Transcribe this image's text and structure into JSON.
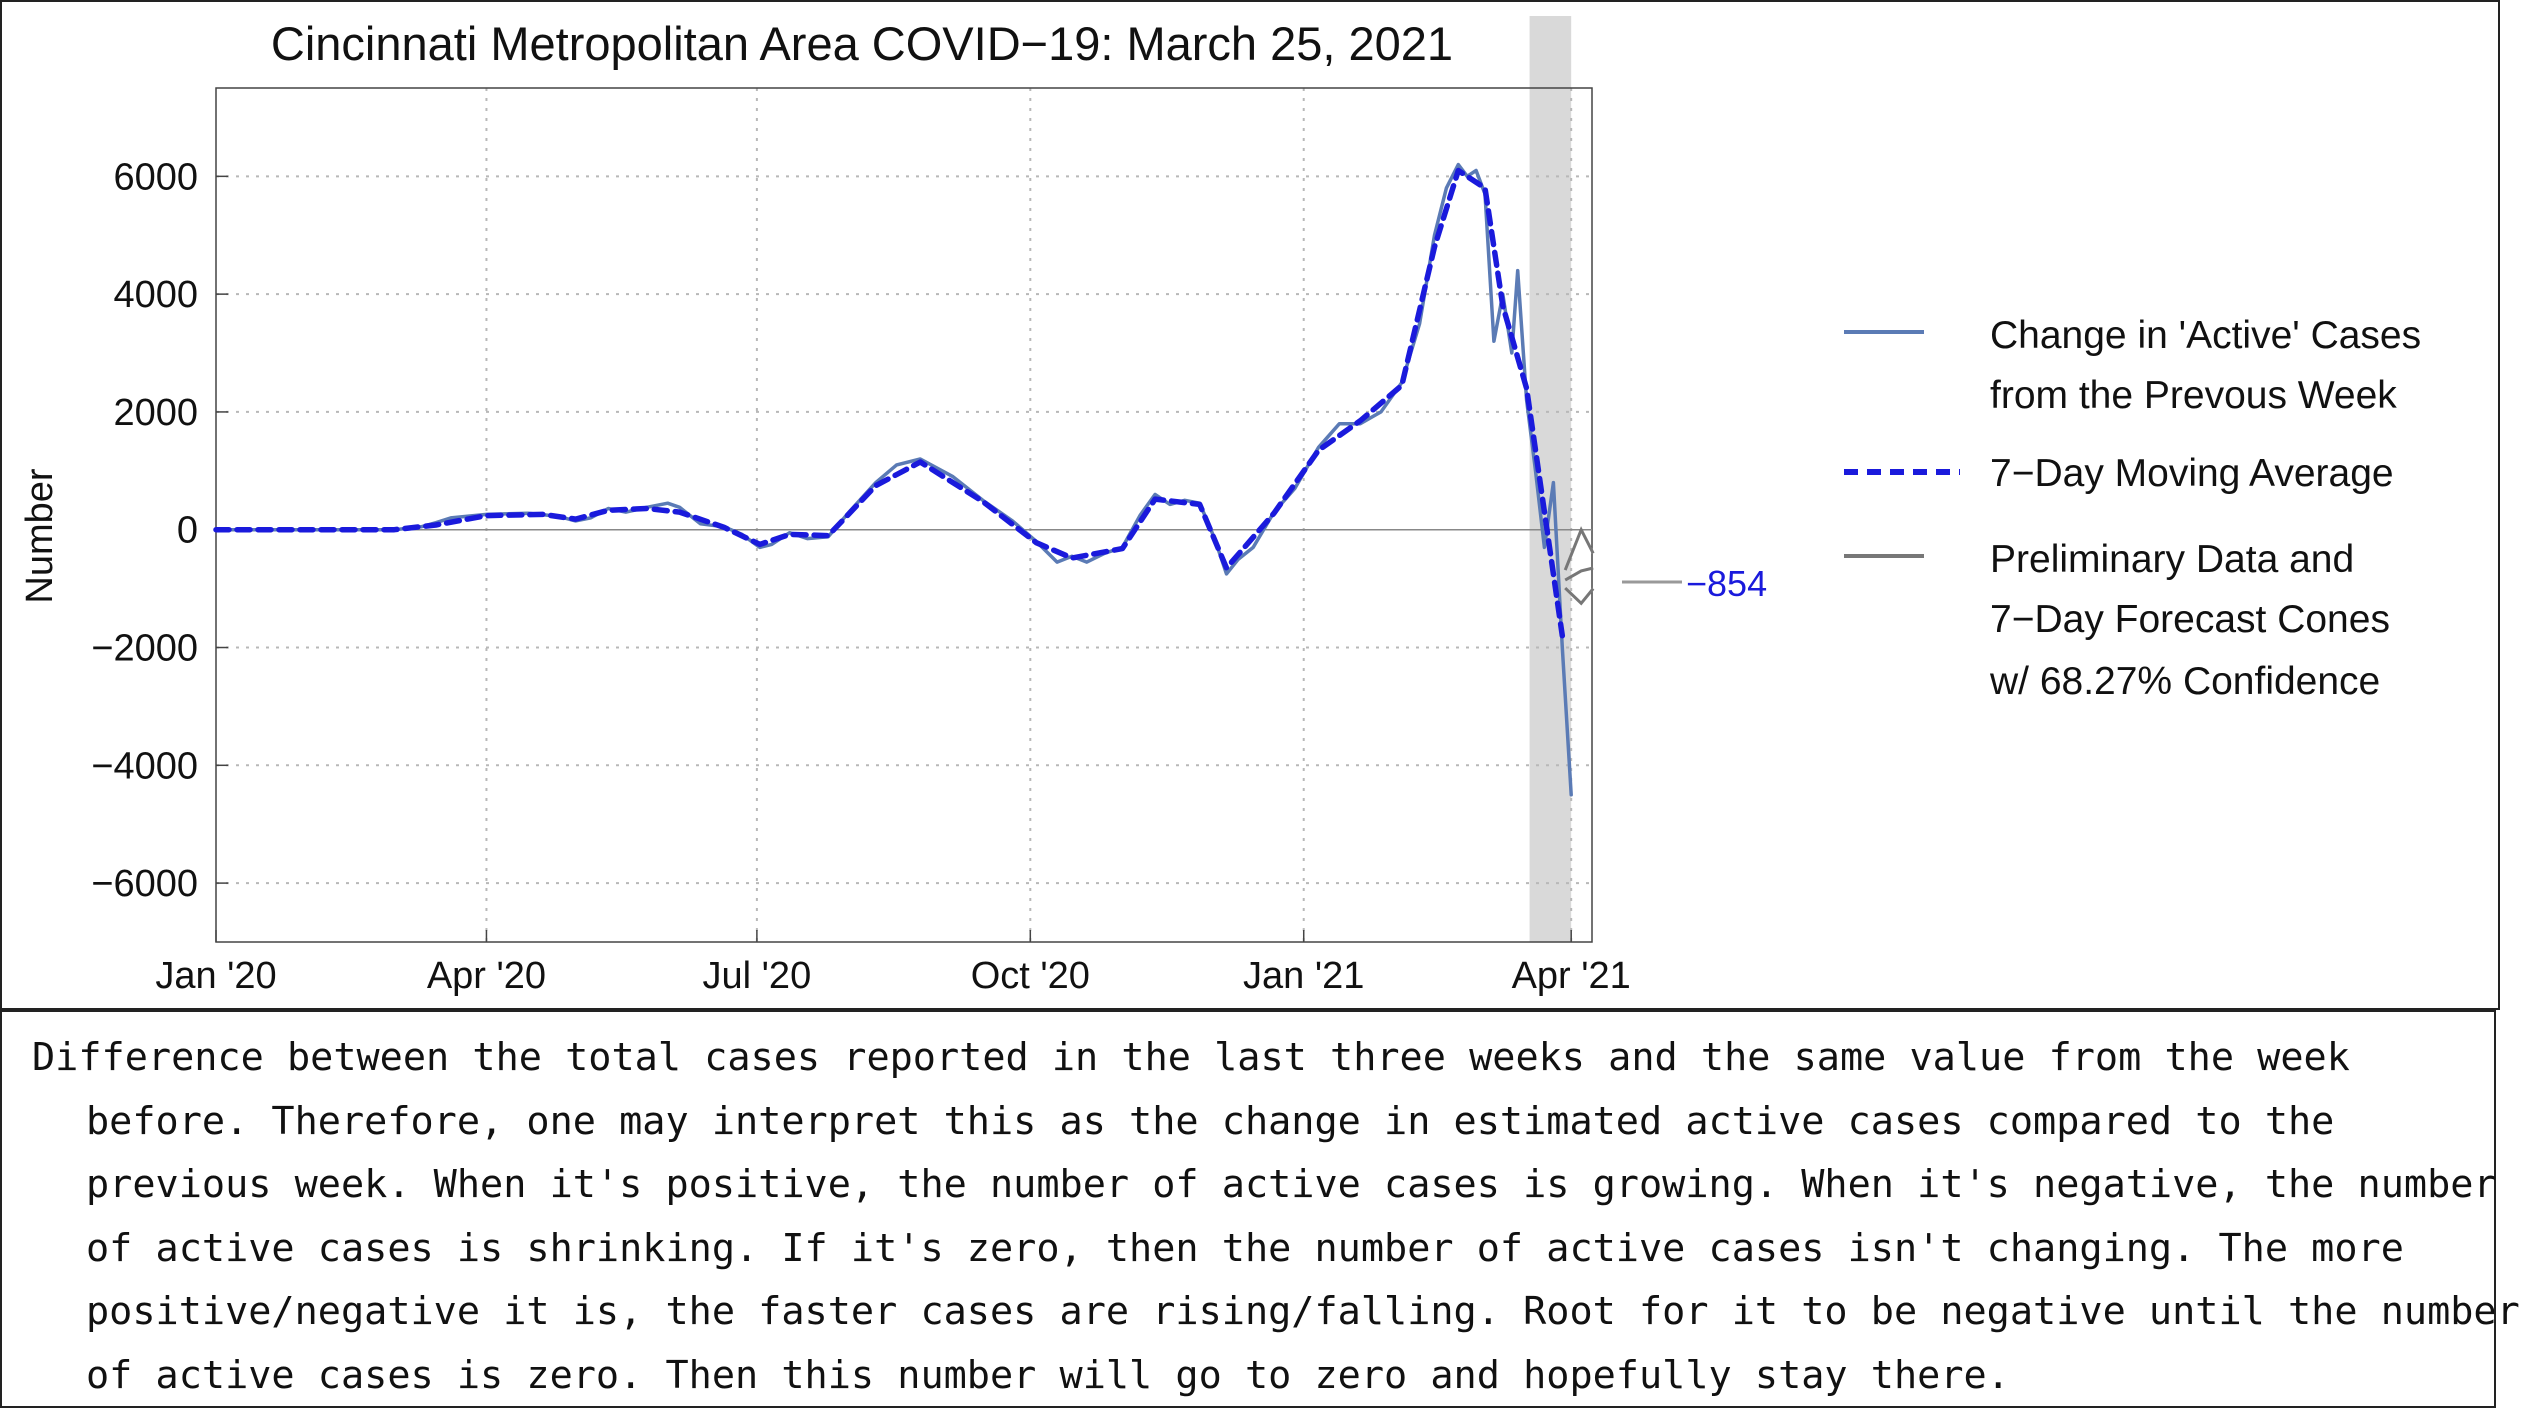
{
  "chart_data": {
    "type": "line",
    "title": "Cincinnati Metropolitan Area COVID−19: March 25, 2021",
    "xlabel": "",
    "ylabel": "Number",
    "x_range": [
      "2020-01-01",
      "2021-04-08"
    ],
    "ylim": [
      -7000,
      7500
    ],
    "x_ticks": [
      {
        "date": "2020-01-01",
        "label": "Jan '20"
      },
      {
        "date": "2020-04-01",
        "label": "Apr '20"
      },
      {
        "date": "2020-07-01",
        "label": "Jul '20"
      },
      {
        "date": "2020-10-01",
        "label": "Oct '20"
      },
      {
        "date": "2021-01-01",
        "label": "Jan '21"
      },
      {
        "date": "2021-04-01",
        "label": "Apr '21"
      }
    ],
    "y_ticks": [
      {
        "value": 6000,
        "label": "6000"
      },
      {
        "value": 4000,
        "label": "4000"
      },
      {
        "value": 2000,
        "label": "2000"
      },
      {
        "value": 0,
        "label": "0"
      },
      {
        "value": -2000,
        "label": "−2000"
      },
      {
        "value": -4000,
        "label": "−4000"
      },
      {
        "value": -6000,
        "label": "−6000"
      }
    ],
    "grid": true,
    "shaded_region": {
      "start": "2021-03-18",
      "end": "2021-04-01",
      "meaning": "preliminary data"
    },
    "series": [
      {
        "name": "Change in 'Active' Cases from the Prevous Week",
        "style": "solid",
        "color": "#5b7bb5",
        "points": [
          [
            "2020-01-01",
            0
          ],
          [
            "2020-02-01",
            0
          ],
          [
            "2020-03-01",
            0
          ],
          [
            "2020-03-10",
            50
          ],
          [
            "2020-03-15",
            120
          ],
          [
            "2020-03-20",
            200
          ],
          [
            "2020-04-01",
            260
          ],
          [
            "2020-04-15",
            280
          ],
          [
            "2020-04-25",
            230
          ],
          [
            "2020-05-01",
            150
          ],
          [
            "2020-05-06",
            200
          ],
          [
            "2020-05-12",
            360
          ],
          [
            "2020-05-18",
            300
          ],
          [
            "2020-05-25",
            380
          ],
          [
            "2020-06-01",
            450
          ],
          [
            "2020-06-05",
            380
          ],
          [
            "2020-06-12",
            100
          ],
          [
            "2020-06-20",
            50
          ],
          [
            "2020-06-26",
            -80
          ],
          [
            "2020-07-02",
            -300
          ],
          [
            "2020-07-06",
            -250
          ],
          [
            "2020-07-12",
            -50
          ],
          [
            "2020-07-18",
            -150
          ],
          [
            "2020-07-25",
            -120
          ],
          [
            "2020-08-01",
            300
          ],
          [
            "2020-08-10",
            800
          ],
          [
            "2020-08-17",
            1100
          ],
          [
            "2020-08-25",
            1200
          ],
          [
            "2020-09-05",
            900
          ],
          [
            "2020-09-15",
            500
          ],
          [
            "2020-09-25",
            150
          ],
          [
            "2020-10-03",
            -200
          ],
          [
            "2020-10-10",
            -550
          ],
          [
            "2020-10-15",
            -450
          ],
          [
            "2020-10-20",
            -550
          ],
          [
            "2020-10-26",
            -400
          ],
          [
            "2020-11-01",
            -300
          ],
          [
            "2020-11-07",
            250
          ],
          [
            "2020-11-12",
            600
          ],
          [
            "2020-11-17",
            430
          ],
          [
            "2020-11-22",
            500
          ],
          [
            "2020-11-27",
            450
          ],
          [
            "2020-12-02",
            -150
          ],
          [
            "2020-12-06",
            -750
          ],
          [
            "2020-12-10",
            -500
          ],
          [
            "2020-12-15",
            -300
          ],
          [
            "2020-12-22",
            300
          ],
          [
            "2020-12-29",
            700
          ],
          [
            "2021-01-06",
            1400
          ],
          [
            "2021-01-13",
            1800
          ],
          [
            "2021-01-20",
            1800
          ],
          [
            "2021-01-27",
            2000
          ],
          [
            "2021-02-03",
            2500
          ],
          [
            "2021-02-09",
            3500
          ],
          [
            "2021-02-14",
            5000
          ],
          [
            "2021-02-18",
            5800
          ],
          [
            "2021-02-22",
            6200
          ],
          [
            "2021-02-25",
            6000
          ],
          [
            "2021-02-28",
            6100
          ],
          [
            "2021-03-03",
            5700
          ],
          [
            "2021-03-06",
            3200
          ],
          [
            "2021-03-09",
            4000
          ],
          [
            "2021-03-12",
            3000
          ],
          [
            "2021-03-14",
            4400
          ],
          [
            "2021-03-17",
            2200
          ],
          [
            "2021-03-20",
            1000
          ],
          [
            "2021-03-23",
            -300
          ],
          [
            "2021-03-26",
            800
          ],
          [
            "2021-03-29",
            -2000
          ],
          [
            "2021-04-01",
            -4500
          ]
        ]
      },
      {
        "name": "7−Day Moving Average",
        "style": "dashed",
        "color": "#1a1adc",
        "points": [
          [
            "2020-01-01",
            0
          ],
          [
            "2020-03-01",
            0
          ],
          [
            "2020-03-15",
            80
          ],
          [
            "2020-04-01",
            240
          ],
          [
            "2020-04-20",
            260
          ],
          [
            "2020-05-01",
            180
          ],
          [
            "2020-05-12",
            330
          ],
          [
            "2020-05-25",
            360
          ],
          [
            "2020-06-05",
            300
          ],
          [
            "2020-06-20",
            40
          ],
          [
            "2020-07-02",
            -250
          ],
          [
            "2020-07-12",
            -80
          ],
          [
            "2020-07-25",
            -100
          ],
          [
            "2020-08-10",
            750
          ],
          [
            "2020-08-25",
            1150
          ],
          [
            "2020-09-15",
            480
          ],
          [
            "2020-10-03",
            -220
          ],
          [
            "2020-10-15",
            -480
          ],
          [
            "2020-11-01",
            -320
          ],
          [
            "2020-11-12",
            520
          ],
          [
            "2020-11-27",
            430
          ],
          [
            "2020-12-06",
            -650
          ],
          [
            "2020-12-22",
            280
          ],
          [
            "2021-01-06",
            1350
          ],
          [
            "2021-01-20",
            1850
          ],
          [
            "2021-02-03",
            2450
          ],
          [
            "2021-02-14",
            4800
          ],
          [
            "2021-02-22",
            6100
          ],
          [
            "2021-03-03",
            5800
          ],
          [
            "2021-03-09",
            3800
          ],
          [
            "2021-03-17",
            2400
          ],
          [
            "2021-03-29",
            -1800
          ]
        ]
      },
      {
        "name": "Preliminary Data and 7−Day Forecast Cones w/ 68.27% Confidence",
        "style": "solid",
        "color": "#777777",
        "points": []
      }
    ],
    "legend": [
      {
        "line1": "Change in 'Active' Cases",
        "line2": "from the Prevous Week"
      },
      {
        "line1": "7−Day Moving Average",
        "line2": ""
      },
      {
        "line1": "Preliminary Data and",
        "line2": "7−Day Forecast Cones",
        "line3": "w/ 68.27% Confidence"
      }
    ],
    "annotation": {
      "value": -854,
      "label": "−854",
      "color": "#1a1adc"
    }
  },
  "colors": {
    "raw_series": "#5b7bb5",
    "moving_average": "#1a1adc",
    "preliminary": "#777777",
    "shade": "#d9d9d9",
    "grid": "#b8b8b8"
  },
  "caption": "Difference between the total cases reported in the last three weeks and the same value from the week before. Therefore, one may interpret this as the change in estimated active cases compared to the previous week. When it's positive, the number of active cases is growing. When it's negative, the number of active cases is shrinking. If it's zero, then the number of active cases isn't changing. The more positive/negative it is, the faster cases are rising/falling. Root for it to be negative until the number of active cases is zero. Then this number will go to zero and hopefully stay there."
}
